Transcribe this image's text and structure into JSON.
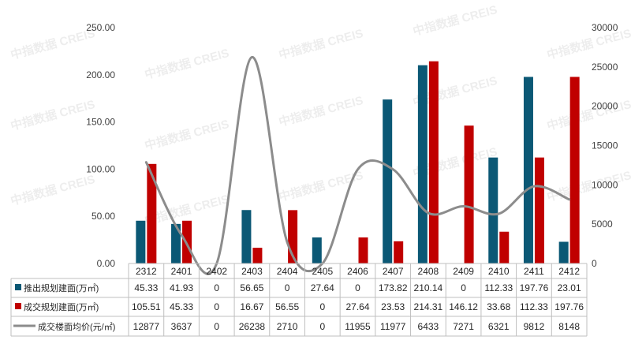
{
  "watermark": "中指数据 CREIS",
  "chart_data": {
    "type": "bar",
    "categories": [
      "2312",
      "2401",
      "2402",
      "2403",
      "2404",
      "2405",
      "2406",
      "2407",
      "2408",
      "2409",
      "2410",
      "2411",
      "2412"
    ],
    "series": [
      {
        "name": "推出规划建面(万㎡)",
        "type": "bar",
        "axis": "left",
        "color": "#0b5875",
        "values": [
          45.33,
          41.93,
          0,
          56.65,
          0,
          27.64,
          0,
          173.82,
          210.14,
          0,
          112.33,
          197.76,
          23.01
        ]
      },
      {
        "name": "成交规划建面(万㎡)",
        "type": "bar",
        "axis": "left",
        "color": "#c00000",
        "values": [
          105.51,
          45.33,
          0,
          16.67,
          56.55,
          0,
          27.64,
          23.53,
          214.31,
          146.12,
          33.68,
          112.33,
          197.76
        ]
      },
      {
        "name": "成交楼面均价(元/㎡)",
        "type": "line",
        "axis": "right",
        "color": "#8c8c8c",
        "values": [
          12877,
          3637,
          0,
          26238,
          2710,
          0,
          11955,
          11977,
          6433,
          7271,
          6321,
          9812,
          8148
        ]
      }
    ],
    "left_axis": {
      "ylim": [
        0,
        250
      ],
      "ticks": [
        "0.00",
        "50.00",
        "100.00",
        "150.00",
        "200.00",
        "250.00"
      ]
    },
    "right_axis": {
      "ylim": [
        0,
        30000
      ],
      "ticks": [
        "0",
        "5000",
        "10000",
        "15000",
        "20000",
        "25000",
        "30000"
      ]
    },
    "table_rows": [
      {
        "label": "推出规划建面(万㎡)",
        "cells": [
          "45.33",
          "41.93",
          "0",
          "56.65",
          "0",
          "27.64",
          "0",
          "173.82",
          "210.14",
          "0",
          "112.33",
          "197.76",
          "23.01"
        ]
      },
      {
        "label": "成交规划建面(万㎡)",
        "cells": [
          "105.51",
          "45.33",
          "0",
          "16.67",
          "56.55",
          "0",
          "27.64",
          "23.53",
          "214.31",
          "146.12",
          "33.68",
          "112.33",
          "197.76"
        ]
      },
      {
        "label": "成交楼面均价(元/㎡)",
        "cells": [
          "12877",
          "3637",
          "0",
          "26238",
          "2710",
          "0",
          "11955",
          "11977",
          "6433",
          "7271",
          "6321",
          "9812",
          "8148"
        ]
      }
    ],
    "grid": false,
    "legend": "data-table"
  }
}
